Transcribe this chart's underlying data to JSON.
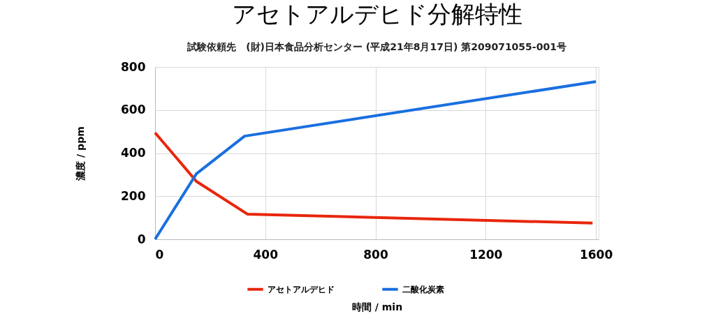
{
  "chart_data": {
    "type": "line",
    "title": "アセトアルデヒド分解特性",
    "subtitle": "試験依頼先　(財)日本食品分析センター (平成21年8月17日) 第209071055-001号",
    "xlabel": "時間 / min",
    "ylabel": "濃度 / ppm",
    "xlim": [
      0,
      1610
    ],
    "xticks": [
      0,
      400,
      800,
      1200,
      1600
    ],
    "ylim": [
      0,
      800
    ],
    "yticks": [
      0,
      200,
      400,
      600,
      800
    ],
    "grid": true,
    "legend": "bottom",
    "marker": "none",
    "line_style": "solid",
    "series": [
      {
        "name": "アセトアルデヒド",
        "color": "#e8260c",
        "x": [
          0,
          150,
          335,
          1588
        ],
        "values": [
          495,
          269,
          117,
          75
        ]
      },
      {
        "name": "二酸化炭素",
        "color": "#1a6fe0",
        "x": [
          0,
          150,
          325,
          1600
        ],
        "values": [
          0,
          304,
          479,
          732
        ]
      }
    ]
  }
}
